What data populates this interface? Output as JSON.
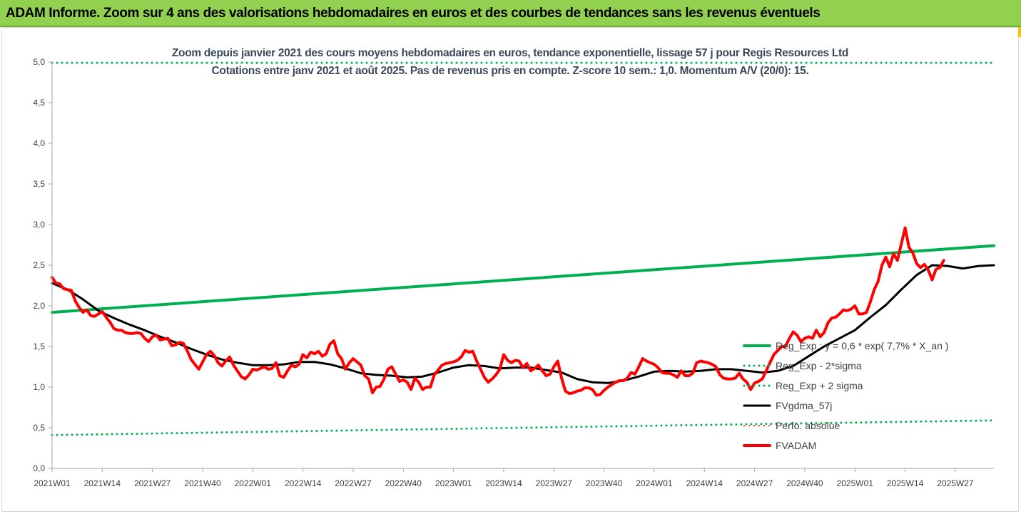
{
  "banner": {
    "title": "ADAM Informe. Zoom sur 4 ans des valorisations hebdomadaires en euros et des courbes de tendances sans les revenus éventuels",
    "color": "#92d050"
  },
  "chart_data": {
    "type": "line",
    "title": "Zoom depuis janvier 2021 des cours moyens hebdomadaires en euros, tendance exponentielle, lissage 57 j pour Regis Resources Ltd",
    "subtitle": "Cotations entre janv 2021 et août 2025. Pas de revenus pris en compte. Z-score 10 sem.: 1,0. Momentum A/V (20/0): 15.",
    "xlabel": "",
    "ylabel": "",
    "ylim": [
      0,
      5
    ],
    "y_ticks": [
      "0,0",
      "0,5",
      "1,0",
      "1,5",
      "2,0",
      "2,5",
      "3,0",
      "3,5",
      "4,0",
      "4,5",
      "5,0"
    ],
    "y_tick_values": [
      0,
      0.5,
      1,
      1.5,
      2,
      2.5,
      3,
      3.5,
      4,
      4.5,
      5
    ],
    "x_ticks": [
      "2021W01",
      "2021W14",
      "2021W27",
      "2021W40",
      "2022W01",
      "2022W14",
      "2022W27",
      "2022W40",
      "2023W01",
      "2023W14",
      "2023W27",
      "2023W40",
      "2024W01",
      "2024W14",
      "2024W27",
      "2024W40",
      "2025W01",
      "2025W14",
      "2025W27"
    ],
    "x_tick_weeks": [
      0,
      13,
      26,
      39,
      52,
      65,
      78,
      91,
      104,
      117,
      130,
      143,
      156,
      169,
      182,
      195,
      208,
      221,
      234
    ],
    "x_max_week": 244,
    "grid": false,
    "legend_position": "right",
    "series": [
      {
        "name": "Reg_Exp : y = 0,6 * exp( 7,7% *  X_an )",
        "color": "#00b050",
        "style": "solid",
        "width": 4,
        "points": [
          [
            0,
            1.92
          ],
          [
            244,
            2.74
          ]
        ]
      },
      {
        "name": "Reg_Exp - 2*sigma",
        "color": "#00b050",
        "style": "dotted",
        "width": 3,
        "points": [
          [
            0,
            0.41
          ],
          [
            244,
            0.59
          ]
        ]
      },
      {
        "name": "Reg_Exp + 2 sigma",
        "color": "#00b050",
        "style": "dotted",
        "width": 3,
        "points": [
          [
            0,
            4.99
          ],
          [
            244,
            4.99
          ]
        ]
      },
      {
        "name": "FVgdma_57j",
        "color": "#000000",
        "style": "solid",
        "width": 3,
        "points": [
          [
            0,
            2.28
          ],
          [
            4,
            2.2
          ],
          [
            8,
            2.08
          ],
          [
            12,
            1.94
          ],
          [
            16,
            1.85
          ],
          [
            20,
            1.77
          ],
          [
            24,
            1.7
          ],
          [
            28,
            1.62
          ],
          [
            32,
            1.55
          ],
          [
            36,
            1.47
          ],
          [
            40,
            1.4
          ],
          [
            44,
            1.34
          ],
          [
            48,
            1.3
          ],
          [
            52,
            1.27
          ],
          [
            56,
            1.27
          ],
          [
            60,
            1.28
          ],
          [
            64,
            1.31
          ],
          [
            68,
            1.31
          ],
          [
            72,
            1.28
          ],
          [
            76,
            1.23
          ],
          [
            80,
            1.17
          ],
          [
            84,
            1.15
          ],
          [
            88,
            1.14
          ],
          [
            92,
            1.12
          ],
          [
            96,
            1.13
          ],
          [
            100,
            1.18
          ],
          [
            104,
            1.24
          ],
          [
            108,
            1.27
          ],
          [
            112,
            1.26
          ],
          [
            116,
            1.23
          ],
          [
            120,
            1.24
          ],
          [
            124,
            1.24
          ],
          [
            128,
            1.21
          ],
          [
            132,
            1.18
          ],
          [
            136,
            1.1
          ],
          [
            140,
            1.06
          ],
          [
            144,
            1.05
          ],
          [
            148,
            1.08
          ],
          [
            152,
            1.13
          ],
          [
            156,
            1.19
          ],
          [
            160,
            1.2
          ],
          [
            164,
            1.19
          ],
          [
            168,
            1.2
          ],
          [
            172,
            1.22
          ],
          [
            176,
            1.22
          ],
          [
            180,
            1.2
          ],
          [
            184,
            1.18
          ],
          [
            188,
            1.2
          ],
          [
            192,
            1.26
          ],
          [
            196,
            1.38
          ],
          [
            200,
            1.5
          ],
          [
            204,
            1.6
          ],
          [
            208,
            1.7
          ],
          [
            212,
            1.86
          ],
          [
            216,
            2.01
          ],
          [
            220,
            2.2
          ],
          [
            224,
            2.38
          ],
          [
            228,
            2.5
          ],
          [
            232,
            2.49
          ],
          [
            236,
            2.46
          ],
          [
            240,
            2.49
          ],
          [
            244,
            2.5
          ]
        ]
      },
      {
        "name": "Perfo. absolue",
        "color": "#ff0000",
        "style": "dotted",
        "width": 2,
        "points": []
      },
      {
        "name": "FVADAM",
        "color": "#ff0000",
        "style": "solid",
        "width": 4,
        "points": [
          [
            0,
            2.35
          ],
          [
            1,
            2.28
          ],
          [
            2,
            2.27
          ],
          [
            3,
            2.21
          ],
          [
            4,
            2.2
          ],
          [
            5,
            2.19
          ],
          [
            6,
            2.06
          ],
          [
            7,
            1.98
          ],
          [
            8,
            1.92
          ],
          [
            9,
            1.95
          ],
          [
            10,
            1.88
          ],
          [
            11,
            1.87
          ],
          [
            12,
            1.9
          ],
          [
            13,
            1.93
          ],
          [
            14,
            1.86
          ],
          [
            15,
            1.8
          ],
          [
            16,
            1.72
          ],
          [
            17,
            1.7
          ],
          [
            18,
            1.7
          ],
          [
            19,
            1.67
          ],
          [
            20,
            1.66
          ],
          [
            21,
            1.66
          ],
          [
            22,
            1.67
          ],
          [
            23,
            1.66
          ],
          [
            24,
            1.6
          ],
          [
            25,
            1.56
          ],
          [
            26,
            1.62
          ],
          [
            27,
            1.64
          ],
          [
            28,
            1.58
          ],
          [
            29,
            1.59
          ],
          [
            30,
            1.6
          ],
          [
            31,
            1.51
          ],
          [
            32,
            1.52
          ],
          [
            33,
            1.55
          ],
          [
            34,
            1.54
          ],
          [
            35,
            1.45
          ],
          [
            36,
            1.34
          ],
          [
            37,
            1.28
          ],
          [
            38,
            1.22
          ],
          [
            39,
            1.31
          ],
          [
            40,
            1.4
          ],
          [
            41,
            1.44
          ],
          [
            42,
            1.39
          ],
          [
            43,
            1.3
          ],
          [
            44,
            1.26
          ],
          [
            45,
            1.32
          ],
          [
            46,
            1.37
          ],
          [
            47,
            1.27
          ],
          [
            48,
            1.2
          ],
          [
            49,
            1.13
          ],
          [
            50,
            1.1
          ],
          [
            51,
            1.15
          ],
          [
            52,
            1.22
          ],
          [
            53,
            1.21
          ],
          [
            54,
            1.23
          ],
          [
            55,
            1.25
          ],
          [
            56,
            1.22
          ],
          [
            57,
            1.23
          ],
          [
            58,
            1.3
          ],
          [
            59,
            1.14
          ],
          [
            60,
            1.12
          ],
          [
            61,
            1.2
          ],
          [
            62,
            1.27
          ],
          [
            63,
            1.25
          ],
          [
            64,
            1.28
          ],
          [
            65,
            1.4
          ],
          [
            66,
            1.36
          ],
          [
            67,
            1.43
          ],
          [
            68,
            1.41
          ],
          [
            69,
            1.44
          ],
          [
            70,
            1.38
          ],
          [
            71,
            1.41
          ],
          [
            72,
            1.53
          ],
          [
            73,
            1.57
          ],
          [
            74,
            1.41
          ],
          [
            75,
            1.35
          ],
          [
            76,
            1.22
          ],
          [
            77,
            1.3
          ],
          [
            78,
            1.35
          ],
          [
            79,
            1.31
          ],
          [
            80,
            1.27
          ],
          [
            81,
            1.14
          ],
          [
            82,
            1.1
          ],
          [
            83,
            0.93
          ],
          [
            84,
            1.0
          ],
          [
            85,
            1.01
          ],
          [
            86,
            1.1
          ],
          [
            87,
            1.22
          ],
          [
            88,
            1.25
          ],
          [
            89,
            1.16
          ],
          [
            90,
            1.07
          ],
          [
            91,
            1.09
          ],
          [
            92,
            1.06
          ],
          [
            93,
            0.97
          ],
          [
            94,
            1.11
          ],
          [
            95,
            1.06
          ],
          [
            96,
            0.97
          ],
          [
            97,
            1.0
          ],
          [
            98,
            1.0
          ],
          [
            99,
            1.15
          ],
          [
            100,
            1.21
          ],
          [
            101,
            1.27
          ],
          [
            102,
            1.29
          ],
          [
            103,
            1.3
          ],
          [
            104,
            1.31
          ],
          [
            105,
            1.33
          ],
          [
            106,
            1.37
          ],
          [
            107,
            1.45
          ],
          [
            108,
            1.43
          ],
          [
            109,
            1.44
          ],
          [
            110,
            1.32
          ],
          [
            111,
            1.22
          ],
          [
            112,
            1.12
          ],
          [
            113,
            1.06
          ],
          [
            114,
            1.1
          ],
          [
            115,
            1.15
          ],
          [
            116,
            1.22
          ],
          [
            117,
            1.4
          ],
          [
            118,
            1.33
          ],
          [
            119,
            1.3
          ],
          [
            120,
            1.33
          ],
          [
            121,
            1.32
          ],
          [
            122,
            1.24
          ],
          [
            123,
            1.29
          ],
          [
            124,
            1.2
          ],
          [
            125,
            1.23
          ],
          [
            126,
            1.27
          ],
          [
            127,
            1.2
          ],
          [
            128,
            1.14
          ],
          [
            129,
            1.16
          ],
          [
            130,
            1.25
          ],
          [
            131,
            1.32
          ],
          [
            132,
            1.11
          ],
          [
            133,
            0.95
          ],
          [
            134,
            0.92
          ],
          [
            135,
            0.93
          ],
          [
            136,
            0.95
          ],
          [
            137,
            0.96
          ],
          [
            138,
            0.99
          ],
          [
            139,
            0.99
          ],
          [
            140,
            0.97
          ],
          [
            141,
            0.9
          ],
          [
            142,
            0.91
          ],
          [
            143,
            0.96
          ],
          [
            144,
            1.0
          ],
          [
            145,
            1.03
          ],
          [
            146,
            1.06
          ],
          [
            147,
            1.08
          ],
          [
            148,
            1.08
          ],
          [
            149,
            1.11
          ],
          [
            150,
            1.18
          ],
          [
            151,
            1.16
          ],
          [
            152,
            1.25
          ],
          [
            153,
            1.35
          ],
          [
            154,
            1.32
          ],
          [
            155,
            1.3
          ],
          [
            156,
            1.28
          ],
          [
            157,
            1.24
          ],
          [
            158,
            1.18
          ],
          [
            159,
            1.17
          ],
          [
            160,
            1.17
          ],
          [
            161,
            1.15
          ],
          [
            162,
            1.12
          ],
          [
            163,
            1.2
          ],
          [
            164,
            1.14
          ],
          [
            165,
            1.14
          ],
          [
            166,
            1.17
          ],
          [
            167,
            1.3
          ],
          [
            168,
            1.32
          ],
          [
            169,
            1.31
          ],
          [
            170,
            1.3
          ],
          [
            171,
            1.28
          ],
          [
            172,
            1.25
          ],
          [
            173,
            1.15
          ],
          [
            174,
            1.11
          ],
          [
            175,
            1.1
          ],
          [
            176,
            1.1
          ],
          [
            177,
            1.11
          ],
          [
            178,
            1.17
          ],
          [
            179,
            1.1
          ],
          [
            180,
            1.06
          ],
          [
            181,
            0.97
          ],
          [
            182,
            1.05
          ],
          [
            183,
            1.07
          ],
          [
            184,
            1.1
          ],
          [
            185,
            1.2
          ],
          [
            186,
            1.3
          ],
          [
            187,
            1.4
          ],
          [
            188,
            1.45
          ],
          [
            189,
            1.5
          ],
          [
            190,
            1.5
          ],
          [
            191,
            1.6
          ],
          [
            192,
            1.68
          ],
          [
            193,
            1.64
          ],
          [
            194,
            1.56
          ],
          [
            195,
            1.6
          ],
          [
            196,
            1.62
          ],
          [
            197,
            1.6
          ],
          [
            198,
            1.7
          ],
          [
            199,
            1.62
          ],
          [
            200,
            1.67
          ],
          [
            201,
            1.79
          ],
          [
            202,
            1.85
          ],
          [
            203,
            1.86
          ],
          [
            204,
            1.9
          ],
          [
            205,
            1.95
          ],
          [
            206,
            1.94
          ],
          [
            207,
            1.96
          ],
          [
            208,
            2.0
          ],
          [
            209,
            1.9
          ],
          [
            210,
            1.9
          ],
          [
            211,
            1.92
          ],
          [
            212,
            2.05
          ],
          [
            213,
            2.2
          ],
          [
            214,
            2.3
          ],
          [
            215,
            2.5
          ],
          [
            216,
            2.6
          ],
          [
            217,
            2.48
          ],
          [
            218,
            2.64
          ],
          [
            219,
            2.56
          ],
          [
            220,
            2.76
          ],
          [
            221,
            2.96
          ],
          [
            222,
            2.72
          ],
          [
            223,
            2.65
          ],
          [
            224,
            2.52
          ],
          [
            225,
            2.47
          ],
          [
            226,
            2.51
          ],
          [
            227,
            2.44
          ],
          [
            228,
            2.32
          ],
          [
            229,
            2.45
          ],
          [
            230,
            2.47
          ],
          [
            231,
            2.56
          ]
        ]
      }
    ]
  }
}
